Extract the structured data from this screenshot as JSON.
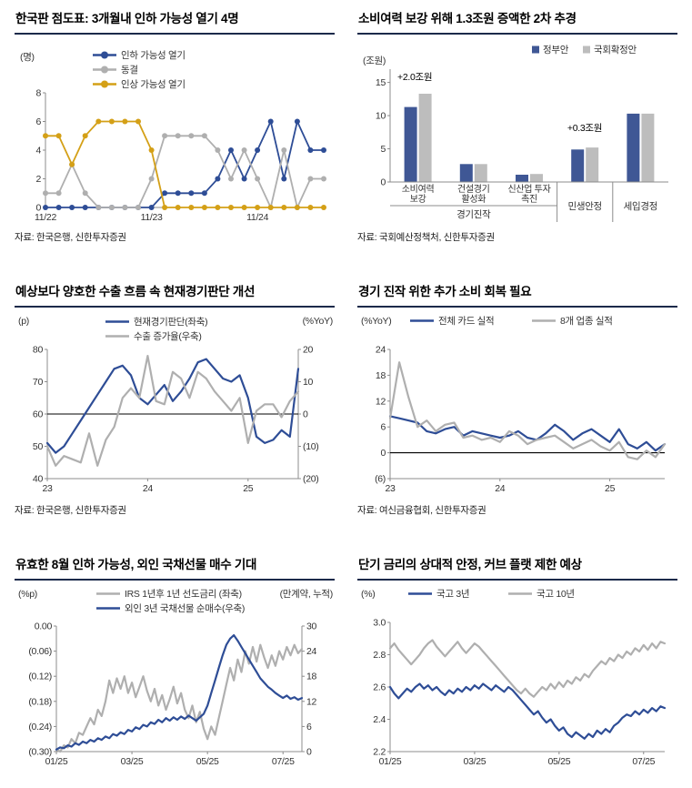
{
  "colors": {
    "navy": "#2e4d96",
    "gray": "#afafaf",
    "gold": "#d4a017",
    "bar_navy": "#3f5795",
    "bar_gray": "#bdbdbd",
    "axis": "#8c8c8c",
    "zero_line": "#000000",
    "title_underline": "#1b2a4a"
  },
  "chart_data": [
    {
      "type": "line",
      "title": "한국판 점도표: 3개월내 인하 가능성 열기 4명",
      "source": "자료: 한국은행, 신한투자증권",
      "unit_left": "(명)",
      "ylim": [
        0,
        8
      ],
      "yticks": [
        {
          "v": 8,
          "l": "8"
        },
        {
          "v": 6,
          "l": "6"
        },
        {
          "v": 4,
          "l": "4"
        },
        {
          "v": 2,
          "l": "2"
        },
        {
          "v": 0,
          "l": "0"
        }
      ],
      "xticks": [
        {
          "i": 0,
          "l": "11/22"
        },
        {
          "i": 8,
          "l": "11/23"
        },
        {
          "i": 16,
          "l": "11/24"
        }
      ],
      "series": [
        {
          "name": "인하 가능성 열기",
          "color": "navy",
          "markers": true,
          "values": [
            0,
            0,
            0,
            0,
            0,
            0,
            0,
            0,
            0,
            1,
            1,
            1,
            1,
            2,
            4,
            2,
            4,
            6,
            2,
            6,
            4,
            4
          ]
        },
        {
          "name": "동결",
          "color": "gray",
          "markers": true,
          "values": [
            1,
            1,
            3,
            1,
            0,
            0,
            0,
            0,
            2,
            5,
            5,
            5,
            5,
            4,
            2,
            4,
            2,
            0,
            4,
            0,
            2,
            2
          ]
        },
        {
          "name": "인상 가능성 열기",
          "color": "gold",
          "markers": true,
          "values": [
            5,
            5,
            3,
            5,
            6,
            6,
            6,
            6,
            4,
            0,
            0,
            0,
            0,
            0,
            0,
            0,
            0,
            0,
            0,
            0,
            0,
            0
          ]
        }
      ],
      "layout": {
        "margins": {
          "l": 34,
          "r": 12,
          "t": 62,
          "b": 24
        },
        "legend": {
          "style": "line-marker",
          "positions": [
            [
              86,
              24
            ],
            [
              86,
              40
            ],
            [
              86,
              56
            ]
          ]
        },
        "line_width": 1.8,
        "marker_r": 3,
        "unit_left_pos": [
          6,
          26
        ]
      }
    },
    {
      "type": "bar",
      "title": "소비여력 보강 위해 1.3조원 증액한 2차 추경",
      "source": "자료: 국회예산정책처, 신한투자증권",
      "unit_left": "(조원)",
      "ylim": [
        0,
        17
      ],
      "yticks": [
        {
          "v": 15,
          "l": "15"
        },
        {
          "v": 10,
          "l": "10"
        },
        {
          "v": 5,
          "l": "5"
        },
        {
          "v": 0,
          "l": "0"
        }
      ],
      "categories": [
        "소비여력 보강",
        "건설경기 활성화",
        "신산업 투자 촉진",
        "민생안정",
        "세입경정"
      ],
      "category_sections": [
        "경기진작",
        "경기진작",
        "경기진작",
        "민생안정",
        "세입경정"
      ],
      "x_sub_labels": [
        [
          "소비여력",
          "보강"
        ],
        [
          "건설경기",
          "활성화"
        ],
        [
          "신산업 투자",
          "촉진"
        ]
      ],
      "series": [
        {
          "name": "정부안",
          "color": "bar_navy",
          "values": [
            11.3,
            2.7,
            1.1,
            4.9,
            10.3
          ]
        },
        {
          "name": "국회확정안",
          "color": "bar_gray",
          "values": [
            13.3,
            2.7,
            1.2,
            5.2,
            10.3
          ]
        }
      ],
      "annotations": [
        {
          "text": "+2.0조원",
          "x": 44,
          "y": 48,
          "anchor": "start"
        },
        {
          "text": "+0.3조원",
          "x": 250,
          "y": 104,
          "anchor": "middle"
        }
      ],
      "layout": {
        "margins": {
          "l": 36,
          "r": 10,
          "t": 36,
          "b": 52
        },
        "legend": {
          "style": "square",
          "positions": [
            [
              192,
              18
            ],
            [
              248,
              18
            ]
          ]
        },
        "unit_left_pos": [
          6,
          30
        ]
      }
    },
    {
      "type": "line",
      "title": "예상보다 양호한 수출 흐름 속 현재경기판단 개선",
      "source": "자료: 한국은행, 신한투자증권",
      "unit_left": "(p)",
      "unit_right": "(%YoY)",
      "ylim": [
        40,
        80
      ],
      "yticks": [
        {
          "v": 80,
          "l": "80"
        },
        {
          "v": 70,
          "l": "70"
        },
        {
          "v": 60,
          "l": "60"
        },
        {
          "v": 50,
          "l": "50"
        },
        {
          "v": 40,
          "l": "40"
        }
      ],
      "y2lim": [
        -20,
        20
      ],
      "y2ticks": [
        {
          "v": 20,
          "l": "20"
        },
        {
          "v": 10,
          "l": "10"
        },
        {
          "v": 0,
          "l": "0"
        },
        {
          "v": -10,
          "l": "(10)"
        },
        {
          "v": -20,
          "l": "(20)"
        }
      ],
      "zero_at": 60,
      "xticks": [
        {
          "i": 0,
          "l": "23"
        },
        {
          "i": 12,
          "l": "24"
        },
        {
          "i": 24,
          "l": "25"
        }
      ],
      "series": [
        {
          "name": "현재경기판단(좌축)",
          "color": "navy",
          "axis": "left",
          "values": [
            51,
            48,
            50,
            54,
            58,
            62,
            66,
            70,
            74,
            75,
            72,
            65,
            63,
            66,
            69,
            64,
            67,
            71,
            76,
            77,
            74,
            71,
            70,
            72,
            65,
            53,
            51,
            52,
            55,
            53,
            74
          ]
        },
        {
          "name": "수출 증가율(우축)",
          "color": "gray",
          "axis": "right",
          "values": [
            -10,
            -16,
            -13,
            -14,
            -15,
            -6,
            -16,
            -8,
            -4,
            5,
            8,
            5,
            18,
            4,
            3,
            13,
            11,
            5,
            13,
            11,
            7,
            4,
            1,
            5,
            -9,
            1,
            3,
            3,
            -1,
            4,
            7
          ]
        }
      ],
      "layout": {
        "margins": {
          "l": 36,
          "r": 40,
          "t": 44,
          "b": 26
        },
        "legend": {
          "style": "line",
          "positions": [
            [
              100,
              17
            ],
            [
              100,
              33
            ]
          ]
        }
      }
    },
    {
      "type": "line",
      "title": "경기 진작 위한 추가 소비 회복 필요",
      "source": "자료: 여신금융협회, 신한투자증권",
      "unit_left": "(%YoY)",
      "ylim": [
        -6,
        24
      ],
      "yticks": [
        {
          "v": 24,
          "l": "24"
        },
        {
          "v": 18,
          "l": "18"
        },
        {
          "v": 12,
          "l": "12"
        },
        {
          "v": 6,
          "l": "6"
        },
        {
          "v": 0,
          "l": "0"
        },
        {
          "v": -6,
          "l": "(6)"
        }
      ],
      "zero_at": 0,
      "xticks": [
        {
          "i": 0,
          "l": "23"
        },
        {
          "i": 12,
          "l": "24"
        },
        {
          "i": 24,
          "l": "25"
        }
      ],
      "series": [
        {
          "name": "전체 카드 실적",
          "color": "navy",
          "values": [
            8.5,
            8,
            7.5,
            7,
            5,
            4.5,
            5.5,
            6,
            4,
            5,
            4.5,
            4,
            3.5,
            4,
            5,
            3.5,
            3,
            4.5,
            6.5,
            5,
            3,
            4.5,
            5.5,
            4,
            2.5,
            5.5,
            2,
            1,
            2.5,
            0.5,
            2
          ]
        },
        {
          "name": "8개 업종 실적",
          "color": "gray",
          "values": [
            8,
            21,
            13,
            6,
            7.5,
            5,
            6.5,
            7,
            3.5,
            4,
            3,
            3.5,
            2.5,
            5,
            4,
            2,
            3,
            3.5,
            4,
            2.5,
            1,
            2,
            3,
            1.5,
            0.5,
            2.5,
            -1,
            -1.5,
            0.5,
            -1,
            2
          ]
        }
      ],
      "layout": {
        "margins": {
          "l": 36,
          "r": 14,
          "t": 44,
          "b": 26
        },
        "legend": {
          "style": "line",
          "positions": [
            [
              58,
              16
            ],
            [
              192,
              16
            ]
          ]
        }
      }
    },
    {
      "type": "line",
      "title": "유효한 8월 인하 가능성, 외인 국채선물 매수 기대",
      "source": "",
      "unit_left": "(%p)",
      "unit_right": "(만계약, 누적)",
      "ylim": [
        -0.3,
        0
      ],
      "yticks": [
        {
          "v": 0,
          "l": "0.00"
        },
        {
          "v": -0.06,
          "l": "(0.06)"
        },
        {
          "v": -0.12,
          "l": "(0.12)"
        },
        {
          "v": -0.18,
          "l": "(0.18)"
        },
        {
          "v": -0.24,
          "l": "(0.24)"
        },
        {
          "v": -0.3,
          "l": "(0.30)"
        }
      ],
      "y2lim": [
        0,
        30
      ],
      "y2ticks": [
        {
          "v": 30,
          "l": "30"
        },
        {
          "v": 24,
          "l": "24"
        },
        {
          "v": 18,
          "l": "18"
        },
        {
          "v": 12,
          "l": "12"
        },
        {
          "v": 6,
          "l": "6"
        },
        {
          "v": 0,
          "l": "0"
        }
      ],
      "xticks": [
        {
          "i": 0,
          "l": "01/25"
        },
        {
          "i": 20,
          "l": "03/25"
        },
        {
          "i": 40,
          "l": "05/25"
        },
        {
          "i": 60,
          "l": "07/25"
        }
      ],
      "series": [
        {
          "name": "IRS 1년후 1년 선도금리 (좌축)",
          "color": "gray",
          "axis": "left",
          "values": [
            -0.295,
            -0.3,
            -0.285,
            -0.29,
            -0.27,
            -0.28,
            -0.255,
            -0.26,
            -0.24,
            -0.22,
            -0.235,
            -0.2,
            -0.215,
            -0.18,
            -0.13,
            -0.16,
            -0.125,
            -0.15,
            -0.12,
            -0.16,
            -0.135,
            -0.17,
            -0.145,
            -0.12,
            -0.155,
            -0.18,
            -0.15,
            -0.19,
            -0.165,
            -0.2,
            -0.175,
            -0.145,
            -0.185,
            -0.16,
            -0.2,
            -0.22,
            -0.19,
            -0.23,
            -0.205,
            -0.245,
            -0.27,
            -0.24,
            -0.26,
            -0.22,
            -0.18,
            -0.14,
            -0.1,
            -0.13,
            -0.08,
            -0.11,
            -0.06,
            -0.09,
            -0.05,
            -0.085,
            -0.045,
            -0.075,
            -0.1,
            -0.07,
            -0.095,
            -0.06,
            -0.08,
            -0.05,
            -0.07,
            -0.045,
            -0.065,
            -0.055
          ]
        },
        {
          "name": "외인 3년 국채선물 순매수(우축)",
          "color": "navy",
          "axis": "right",
          "values": [
            0.5,
            1,
            0.8,
            1.5,
            1.2,
            2,
            1.6,
            2.4,
            2,
            2.8,
            2.4,
            3.2,
            2.8,
            3.6,
            3.2,
            4.2,
            3.8,
            4.6,
            4.2,
            5.2,
            4.8,
            5.8,
            5.4,
            6.4,
            6,
            7,
            6.6,
            7.6,
            7,
            8,
            7.4,
            8.2,
            7.6,
            8.4,
            7.8,
            8.6,
            8,
            7.4,
            8.2,
            9,
            11,
            14,
            17,
            20,
            23,
            25.5,
            27,
            27.8,
            26.5,
            25,
            23.5,
            22,
            20.5,
            19,
            17.5,
            16.5,
            15.5,
            14.8,
            14,
            13.4,
            12.8,
            13.4,
            12.6,
            13,
            12.4,
            12.8
          ]
        }
      ],
      "layout": {
        "margins": {
          "l": 46,
          "r": 36,
          "t": 48,
          "b": 26
        },
        "legend": {
          "style": "line",
          "positions": [
            [
              90,
              16
            ],
            [
              90,
              32
            ]
          ]
        }
      }
    },
    {
      "type": "line",
      "title": "단기 금리의 상대적 안정, 커브 플랫 제한 예상",
      "source": "",
      "unit_left": "(%)",
      "ylim": [
        2.2,
        3.0
      ],
      "yticks": [
        {
          "v": 3.0,
          "l": "3.0"
        },
        {
          "v": 2.8,
          "l": "2.8"
        },
        {
          "v": 2.6,
          "l": "2.6"
        },
        {
          "v": 2.4,
          "l": "2.4"
        },
        {
          "v": 2.2,
          "l": "2.2"
        }
      ],
      "xticks": [
        {
          "i": 0,
          "l": "01/25"
        },
        {
          "i": 20,
          "l": "03/25"
        },
        {
          "i": 40,
          "l": "05/25"
        },
        {
          "i": 60,
          "l": "07/25"
        }
      ],
      "series": [
        {
          "name": "국고 3년",
          "color": "navy",
          "values": [
            2.6,
            2.56,
            2.53,
            2.56,
            2.59,
            2.57,
            2.6,
            2.62,
            2.59,
            2.61,
            2.58,
            2.6,
            2.57,
            2.55,
            2.58,
            2.56,
            2.59,
            2.57,
            2.6,
            2.58,
            2.61,
            2.59,
            2.62,
            2.6,
            2.58,
            2.61,
            2.59,
            2.57,
            2.6,
            2.58,
            2.55,
            2.52,
            2.49,
            2.46,
            2.43,
            2.45,
            2.41,
            2.38,
            2.4,
            2.36,
            2.33,
            2.35,
            2.31,
            2.29,
            2.32,
            2.3,
            2.28,
            2.31,
            2.29,
            2.33,
            2.31,
            2.34,
            2.32,
            2.36,
            2.38,
            2.41,
            2.43,
            2.42,
            2.45,
            2.43,
            2.46,
            2.44,
            2.47,
            2.45,
            2.48,
            2.47
          ]
        },
        {
          "name": "국고 10년",
          "color": "gray",
          "values": [
            2.84,
            2.87,
            2.83,
            2.8,
            2.77,
            2.74,
            2.77,
            2.8,
            2.84,
            2.87,
            2.89,
            2.85,
            2.82,
            2.79,
            2.82,
            2.85,
            2.88,
            2.84,
            2.81,
            2.84,
            2.87,
            2.85,
            2.82,
            2.79,
            2.76,
            2.73,
            2.7,
            2.67,
            2.64,
            2.61,
            2.58,
            2.56,
            2.59,
            2.56,
            2.54,
            2.57,
            2.6,
            2.58,
            2.62,
            2.59,
            2.63,
            2.6,
            2.64,
            2.62,
            2.66,
            2.64,
            2.68,
            2.66,
            2.7,
            2.73,
            2.76,
            2.74,
            2.78,
            2.76,
            2.8,
            2.78,
            2.82,
            2.8,
            2.84,
            2.82,
            2.86,
            2.83,
            2.87,
            2.84,
            2.88,
            2.87
          ]
        }
      ],
      "layout": {
        "margins": {
          "l": 36,
          "r": 14,
          "t": 44,
          "b": 26
        },
        "legend": {
          "style": "line",
          "positions": [
            [
              56,
              16
            ],
            [
              166,
              16
            ]
          ]
        }
      }
    }
  ]
}
